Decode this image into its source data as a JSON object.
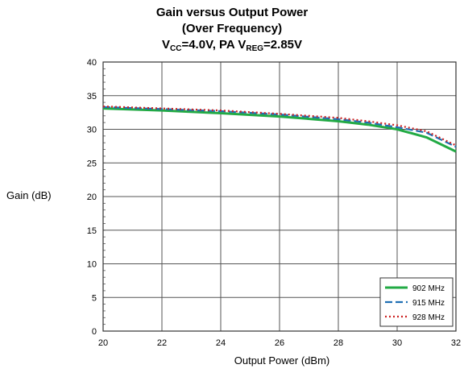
{
  "chart_data": {
    "type": "line",
    "title_line1": "Gain versus Output Power",
    "title_line2": "(Over Frequency)",
    "title_line3_parts": [
      "V",
      "CC",
      "=4.0V, PA V",
      "REG",
      "=2.85V"
    ],
    "xlabel": "Output Power (dBm)",
    "ylabel": "Gain (dB)",
    "xlim": [
      20,
      32
    ],
    "ylim": [
      0,
      40
    ],
    "x_ticks": [
      "20",
      "22",
      "24",
      "26",
      "28",
      "30",
      "32"
    ],
    "y_ticks": [
      "0",
      "5",
      "10",
      "15",
      "20",
      "25",
      "30",
      "35",
      "40"
    ],
    "grid": true,
    "legend_position": "bottom-right",
    "series": [
      {
        "name": "902 MHz",
        "color": "#22aa44",
        "style": "solid",
        "points": [
          [
            20,
            33.1
          ],
          [
            22,
            32.8
          ],
          [
            24,
            32.4
          ],
          [
            26,
            31.9
          ],
          [
            28,
            31.2
          ],
          [
            29,
            30.7
          ],
          [
            30,
            30.0
          ],
          [
            31,
            28.8
          ],
          [
            32,
            26.7
          ]
        ]
      },
      {
        "name": "915 MHz",
        "color": "#1f6fb4",
        "style": "dashed",
        "points": [
          [
            20,
            33.3
          ],
          [
            22,
            33.0
          ],
          [
            24,
            32.7
          ],
          [
            26,
            32.2
          ],
          [
            28,
            31.5
          ],
          [
            29,
            31.0
          ],
          [
            30,
            30.3
          ],
          [
            31,
            29.5
          ],
          [
            32,
            27.4
          ]
        ]
      },
      {
        "name": "928 MHz",
        "color": "#cc2222",
        "style": "dotted",
        "points": [
          [
            20,
            33.4
          ],
          [
            22,
            33.1
          ],
          [
            24,
            32.8
          ],
          [
            26,
            32.3
          ],
          [
            28,
            31.7
          ],
          [
            29,
            31.2
          ],
          [
            30,
            30.6
          ],
          [
            31,
            29.7
          ],
          [
            32,
            27.6
          ]
        ]
      }
    ]
  }
}
